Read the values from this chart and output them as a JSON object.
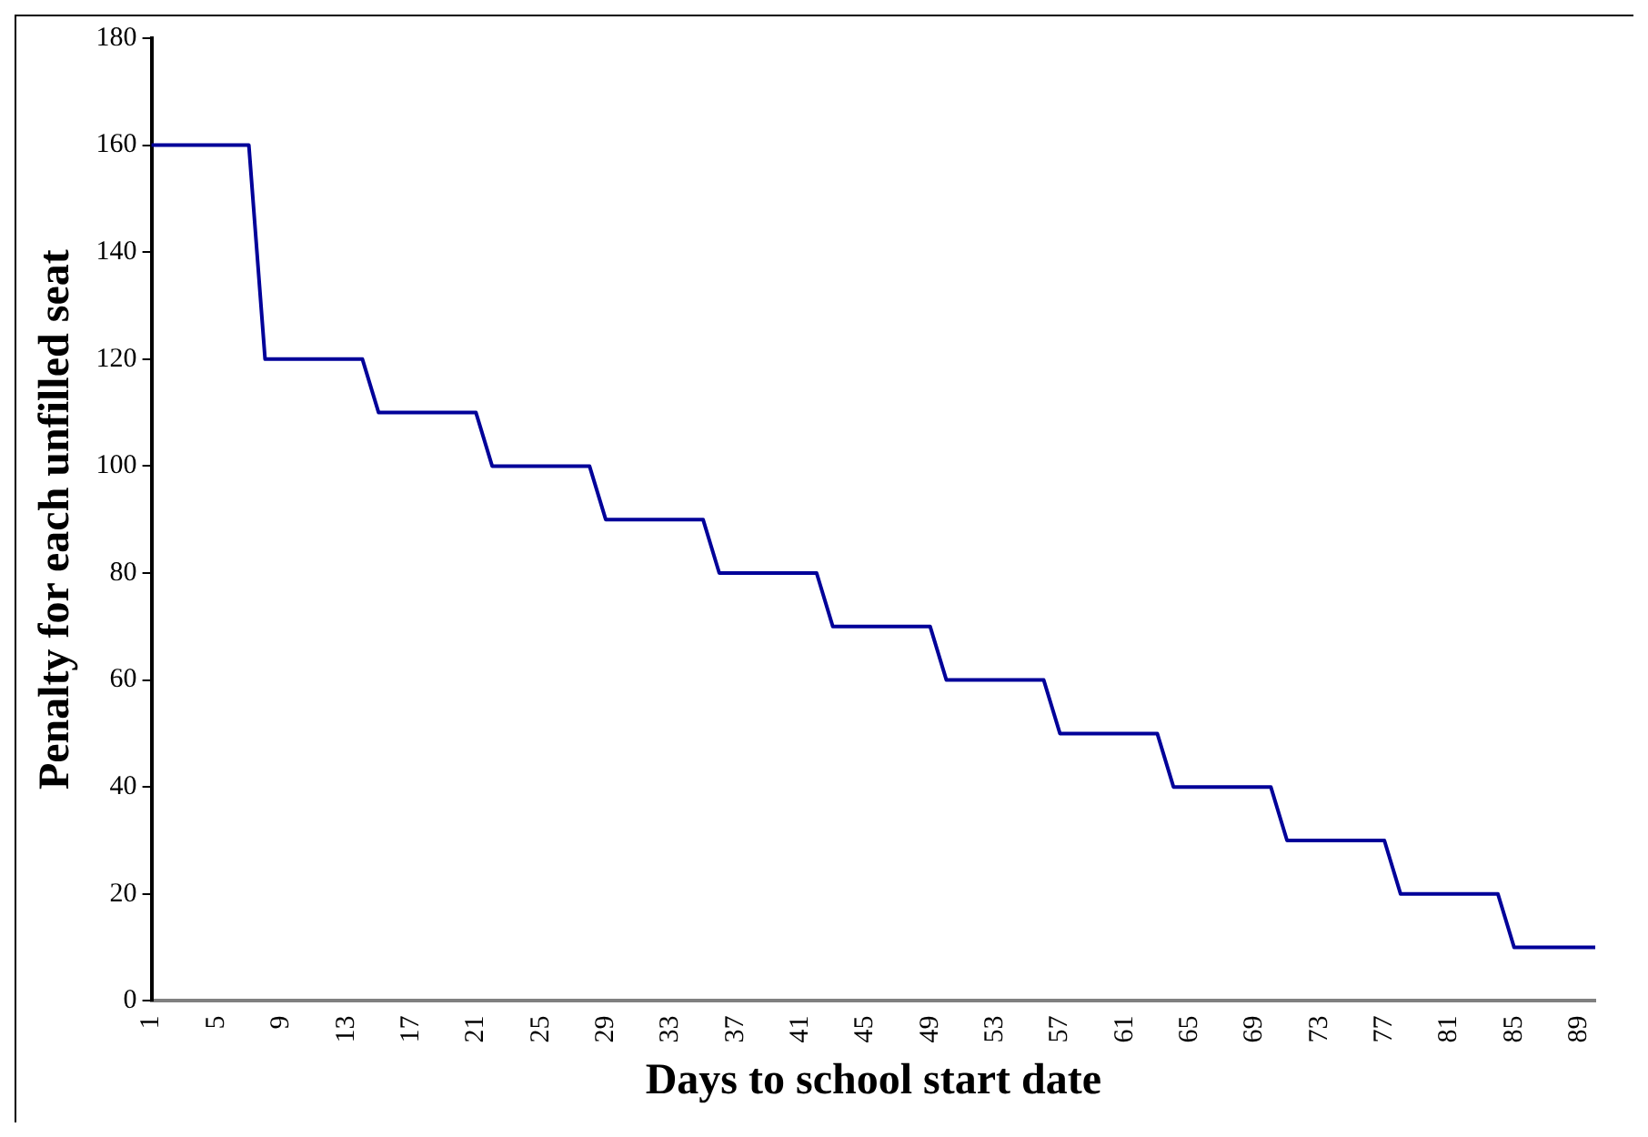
{
  "chart_data": {
    "type": "line",
    "xlabel": "Days to school start date",
    "ylabel": "Penalty for each unfilled seat",
    "categories": [
      "1",
      null,
      null,
      null,
      "5",
      null,
      null,
      null,
      "9",
      null,
      null,
      null,
      "13",
      null,
      null,
      null,
      "17",
      null,
      null,
      null,
      "21",
      null,
      null,
      null,
      "25",
      null,
      null,
      null,
      "29",
      null,
      null,
      null,
      "33",
      null,
      null,
      null,
      "37",
      null,
      null,
      null,
      "41",
      null,
      null,
      null,
      "45",
      null,
      null,
      null,
      "49",
      null,
      null,
      null,
      "53",
      null,
      null,
      null,
      "57",
      null,
      null,
      null,
      "61",
      null,
      null,
      null,
      "65",
      null,
      null,
      null,
      "69",
      null,
      null,
      null,
      "73",
      null,
      null,
      null,
      "77",
      null,
      null,
      null,
      "81",
      null,
      null,
      null,
      "85",
      null,
      null,
      null,
      "89",
      null
    ],
    "series": [
      {
        "color": "#000099",
        "values": [
          160,
          160,
          160,
          160,
          160,
          160,
          160,
          120,
          120,
          120,
          120,
          120,
          120,
          120,
          110,
          110,
          110,
          110,
          110,
          110,
          110,
          100,
          100,
          100,
          100,
          100,
          100,
          100,
          90,
          90,
          90,
          90,
          90,
          90,
          90,
          80,
          80,
          80,
          80,
          80,
          80,
          80,
          70,
          70,
          70,
          70,
          70,
          70,
          70,
          60,
          60,
          60,
          60,
          60,
          60,
          60,
          50,
          50,
          50,
          50,
          50,
          50,
          50,
          40,
          40,
          40,
          40,
          40,
          40,
          40,
          30,
          30,
          30,
          30,
          30,
          30,
          30,
          20,
          20,
          20,
          20,
          20,
          20,
          20,
          10,
          10,
          10,
          10,
          10,
          10
        ]
      }
    ],
    "ylim": [
      0,
      180
    ],
    "yticks": [
      0,
      20,
      40,
      60,
      80,
      100,
      120,
      140,
      160,
      180
    ],
    "grid": false,
    "legend": false,
    "marker": "none",
    "line_style": "solid"
  }
}
